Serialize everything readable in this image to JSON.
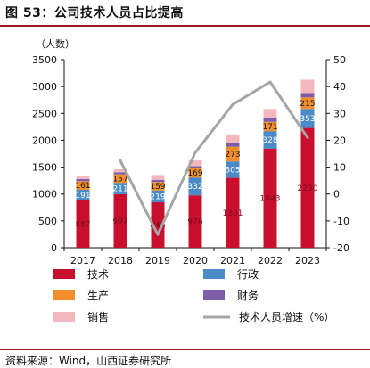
{
  "title": "图 53：公司技术人员占比提高",
  "source": "资料来源：Wind，山西证券研究所",
  "chart_data": {
    "type": "bar",
    "stacked": true,
    "categories": [
      "2017",
      "2018",
      "2019",
      "2020",
      "2021",
      "2022",
      "2023"
    ],
    "y_unit": "（人数）",
    "ylim": [
      0,
      3500
    ],
    "yticks": [
      "0",
      "500",
      "1000",
      "1500",
      "2000",
      "2500",
      "3000",
      "3500"
    ],
    "y2lim": [
      -20,
      50
    ],
    "y2ticks": [
      "-20",
      "-10",
      "0",
      "10",
      "20",
      "30",
      "40",
      "50"
    ],
    "series": [
      {
        "name": "技术",
        "color": "#c8102e",
        "label_color": "#7a0a1b",
        "values": [
          887,
          997,
          846,
          976,
          1301,
          1843,
          2230
        ]
      },
      {
        "name": "行政",
        "color": "#4a8ac6",
        "label_color": "#ffffff",
        "values": [
          191,
          211,
          219,
          332,
          305,
          328,
          353
        ]
      },
      {
        "name": "生产",
        "color": "#f28e2b",
        "label_color": "#111111",
        "values": [
          161,
          157,
          159,
          169,
          273,
          171,
          215
        ]
      },
      {
        "name": "财务",
        "color": "#7b5ea7",
        "label_color": "#111111",
        "values": [
          40,
          40,
          40,
          40,
          80,
          80,
          80
        ]
      },
      {
        "name": "销售",
        "color": "#f2b8be",
        "label_color": "#111111",
        "values": [
          55,
          55,
          90,
          110,
          150,
          160,
          250
        ]
      }
    ],
    "line": {
      "name": "技术人员增速（%）",
      "color": "#a6a6a6",
      "axis": "right",
      "x": [
        "2018",
        "2019",
        "2020",
        "2021",
        "2022",
        "2023"
      ],
      "values": [
        12.4,
        -15.1,
        15.4,
        33.3,
        41.7,
        21.0
      ]
    },
    "legend_order": [
      "技术",
      "行政",
      "生产",
      "财务",
      "销售",
      "技术人员增速（%）"
    ]
  }
}
